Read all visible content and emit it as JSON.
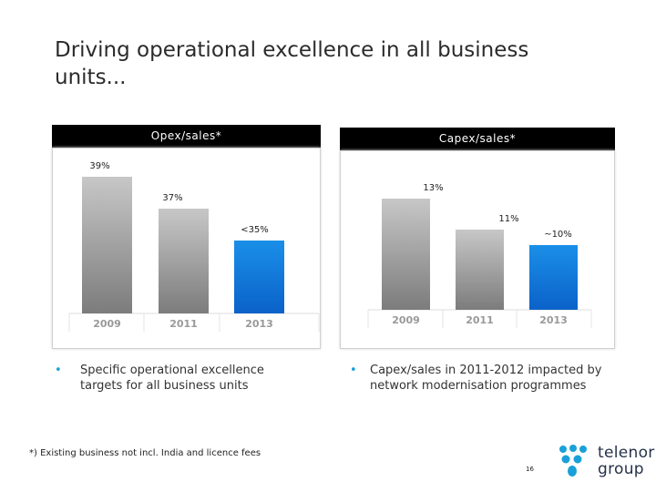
{
  "slide": {
    "title": "Driving operational excellence in all business units...",
    "footnote": "*) Existing business not incl. India and licence fees",
    "page_number": "16"
  },
  "logo": {
    "line1": "telenor",
    "line2": "group"
  },
  "colors": {
    "grey_bar": "#b5b5b5",
    "highlight_bar": "#1a8fe8",
    "bullet": "#1aa0d9"
  },
  "panels": [
    {
      "header": "Opex/sales*",
      "bullet": "Specific operational excellence targets for all business units",
      "chart_data": {
        "type": "bar",
        "categories": [
          "2009",
          "2011",
          "2013"
        ],
        "values": [
          39,
          37,
          35
        ],
        "labels": [
          "39%",
          "37%",
          "<35%"
        ],
        "highlight_index": 2
      }
    },
    {
      "header": "Capex/sales*",
      "bullet": "Capex/sales in 2011-2012 impacted by network modernisation programmes",
      "chart_data": {
        "type": "bar",
        "categories": [
          "2009",
          "2011",
          "2013"
        ],
        "values": [
          13,
          11,
          10
        ],
        "labels": [
          "13%",
          "11%",
          "~10%"
        ],
        "highlight_index": 2
      }
    }
  ]
}
